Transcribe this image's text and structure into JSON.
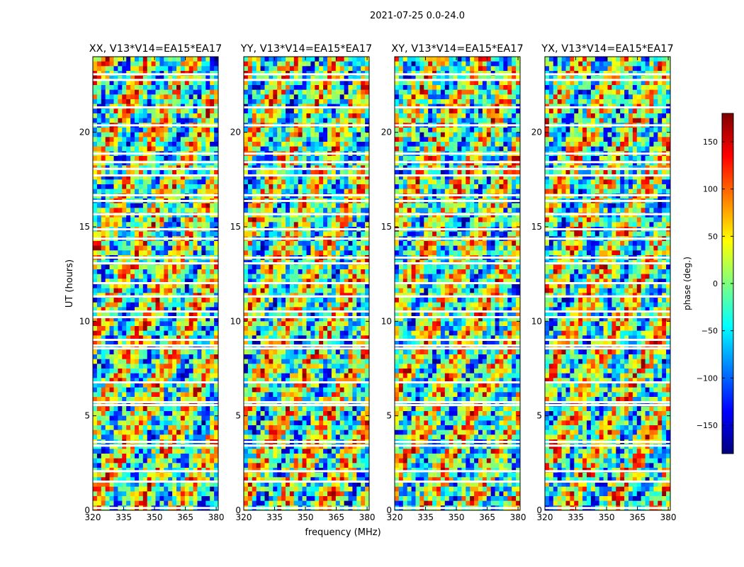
{
  "figure": {
    "suptitle": "2021-07-25 0.0-24.0",
    "xlabel": "frequency (MHz)",
    "ylabel": "UT (hours)"
  },
  "chart_data": {
    "type": "heatmap",
    "x_range": [
      320,
      381
    ],
    "y_range": [
      0,
      24
    ],
    "xticks": [
      320,
      335,
      350,
      365,
      380
    ],
    "yticks": [
      0,
      5,
      10,
      15,
      20
    ],
    "blank_time_rows_hours": [
      0.1,
      1.5,
      2.05,
      3.4,
      3.6,
      5.55,
      5.7,
      6.75,
      8.7,
      8.55,
      9.0,
      10.2,
      10.5,
      11.3,
      12.0,
      13.05,
      13.35,
      14.35,
      14.85,
      15.65,
      16.35,
      16.65,
      17.7,
      18.05,
      18.4,
      18.85,
      20.35,
      21.3,
      22.75,
      23.05
    ],
    "panels": [
      {
        "title": "XX, V13*V14=EA15*EA17"
      },
      {
        "title": "YY, V13*V14=EA15*EA17"
      },
      {
        "title": "XY, V13*V14=EA15*EA17"
      },
      {
        "title": "YX, V13*V14=EA15*EA17"
      }
    ],
    "colorbar": {
      "label": "phase (deg.)",
      "range": [
        -180,
        180
      ],
      "ticks": [
        -150,
        -100,
        -50,
        0,
        50,
        100,
        150
      ],
      "tick_labels": [
        "−150",
        "−100",
        "−50",
        "0",
        "50",
        "100",
        "150"
      ],
      "colormap": "jet",
      "colormap_stops": [
        "#00007f",
        "#0000ff",
        "#007fff",
        "#00ffff",
        "#7fff7f",
        "#ffff00",
        "#ff7f00",
        "#ff0000",
        "#7f0000"
      ]
    }
  }
}
